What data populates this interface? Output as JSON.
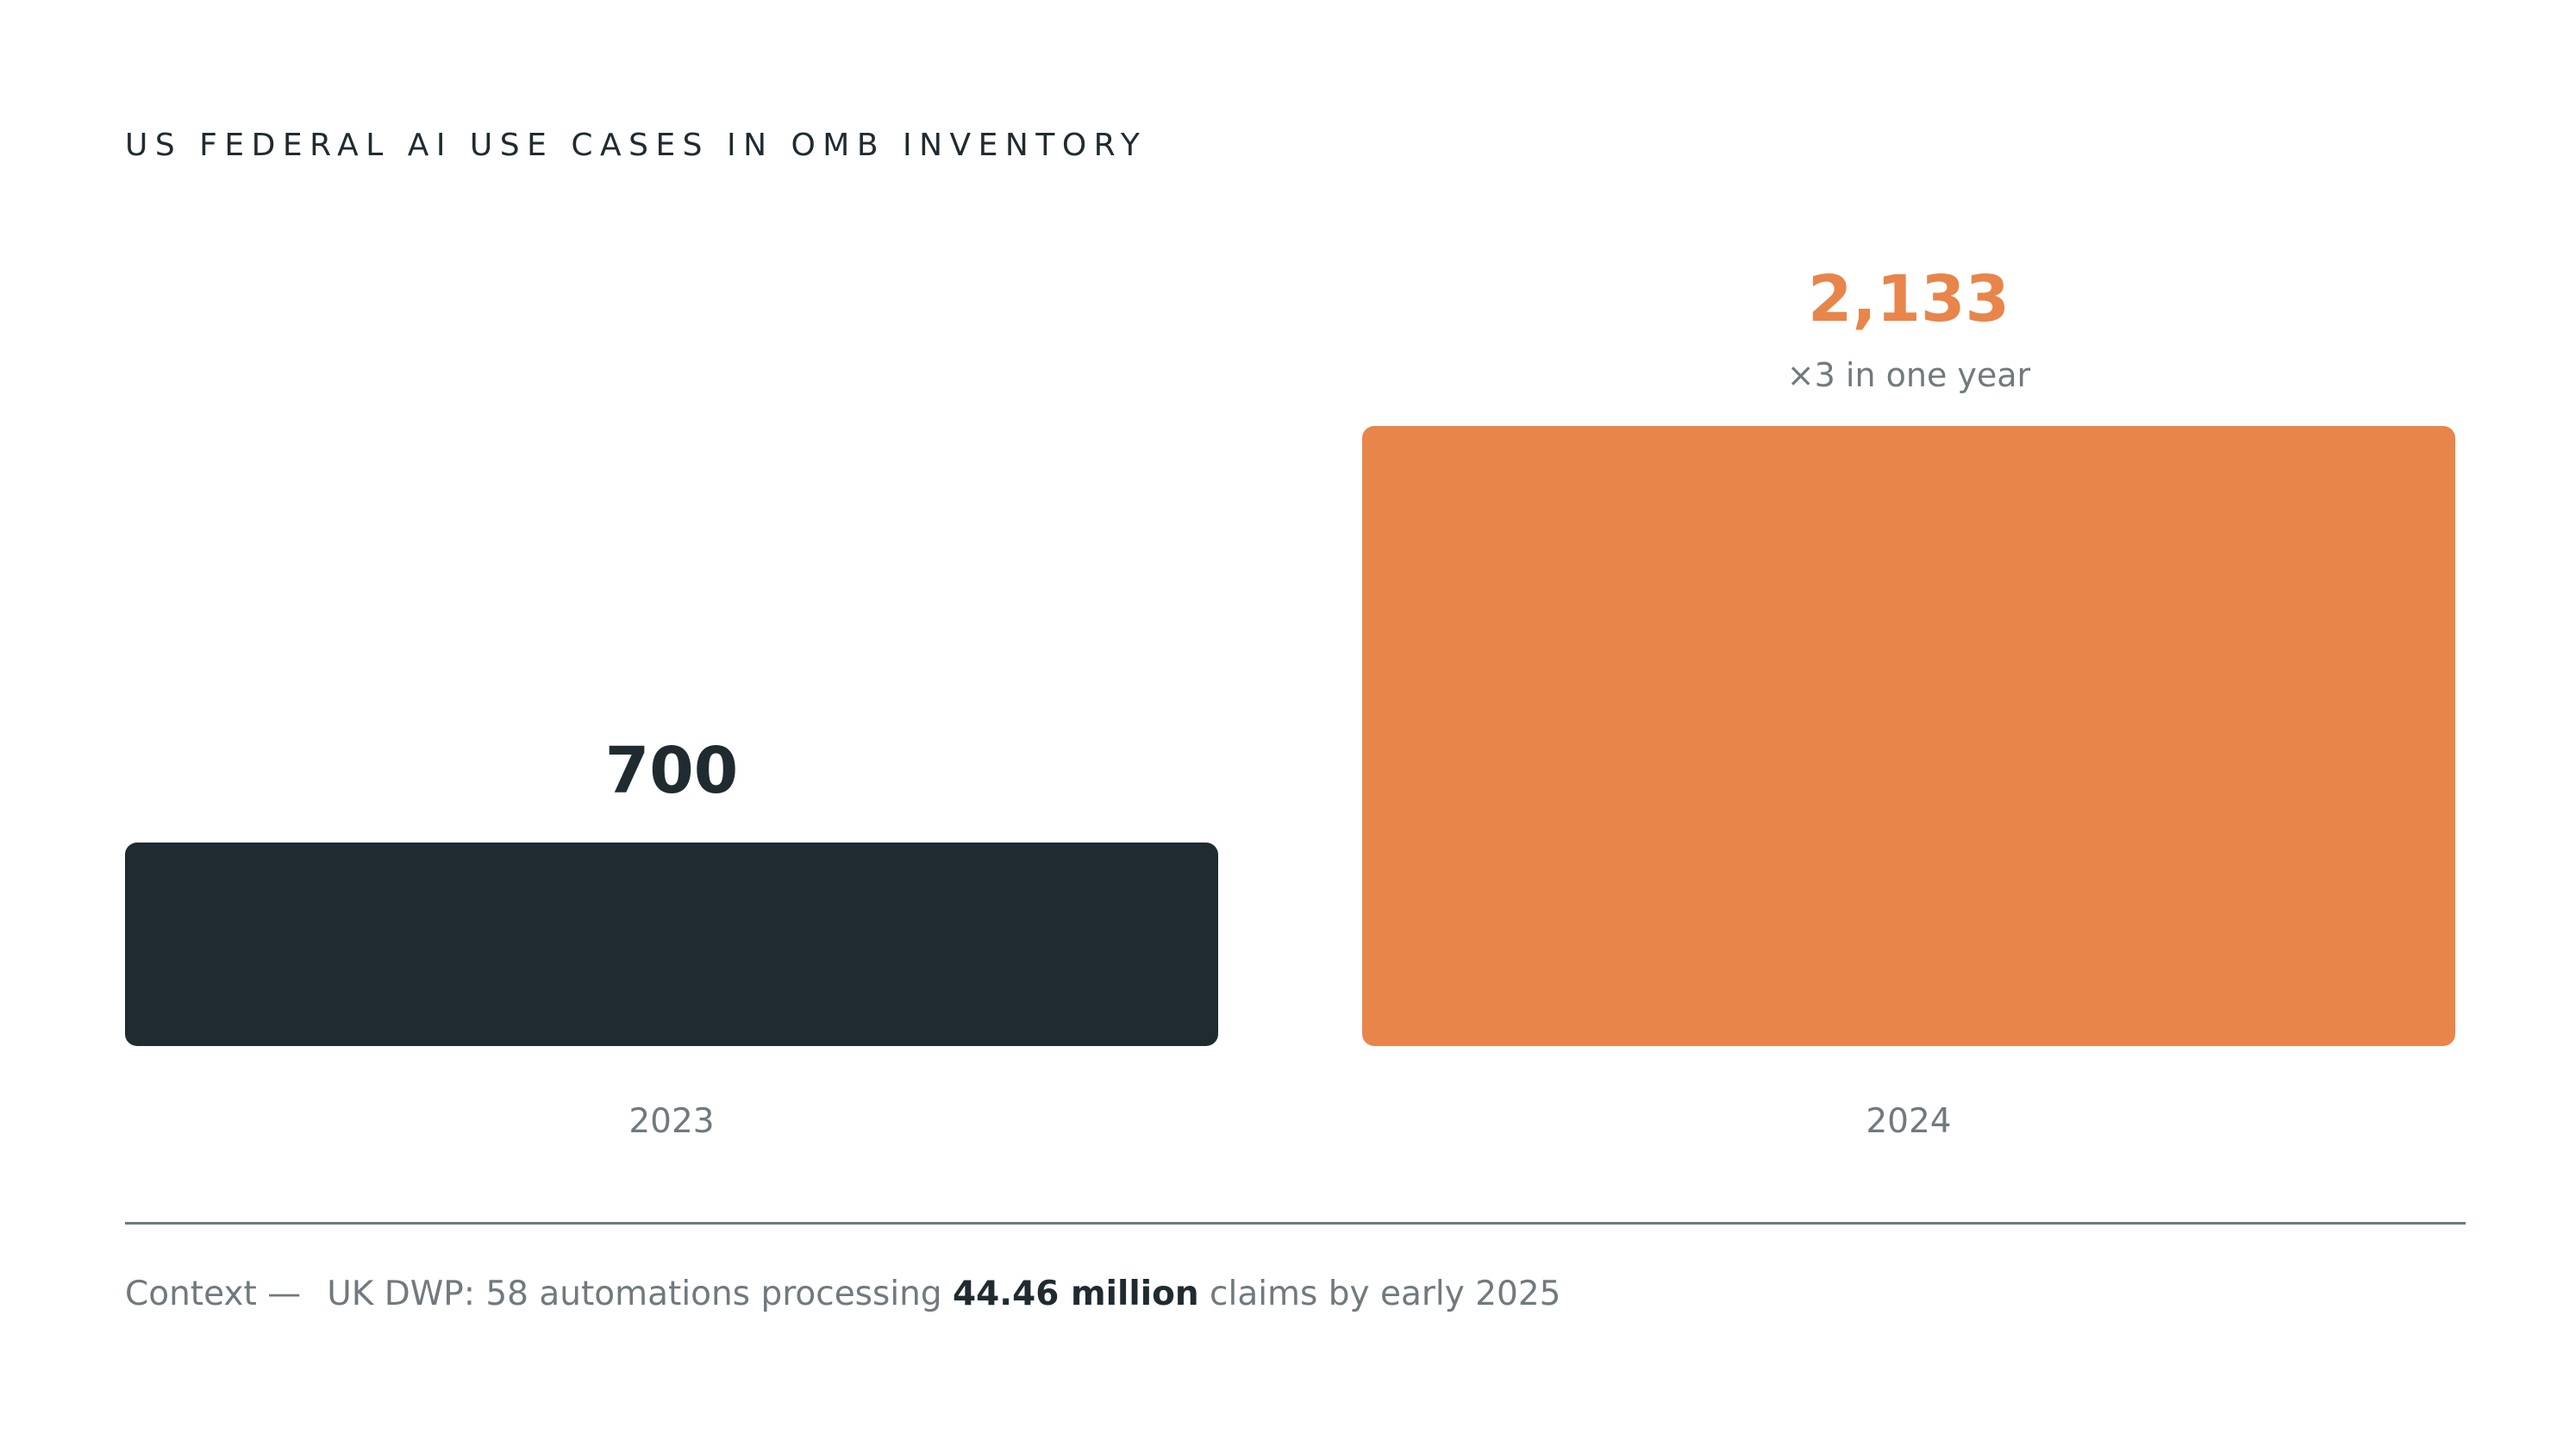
{
  "colors": {
    "dark": "#1f2b30",
    "accent": "#e8854b",
    "muted": "#707a7e",
    "divider": "#707a7e",
    "background": "#ffffff"
  },
  "chart_data": {
    "type": "bar",
    "title": "US FEDERAL AI USE CASES IN OMB INVENTORY",
    "categories": [
      "2023",
      "2024"
    ],
    "values": [
      700,
      2133
    ],
    "value_labels": [
      "700",
      "2,133"
    ],
    "annotations": [
      "",
      "×3 in one year"
    ],
    "bar_colors": [
      "#1f2b30",
      "#e8854b"
    ],
    "label_colors": [
      "#1f2b30",
      "#e8854b"
    ],
    "grid": false,
    "ylim": [
      0,
      2133
    ]
  },
  "footer": {
    "label": "Context —",
    "text_before": "UK DWP: 58 automations processing ",
    "highlight": "44.46 million",
    "text_after": " claims by early 2025"
  }
}
